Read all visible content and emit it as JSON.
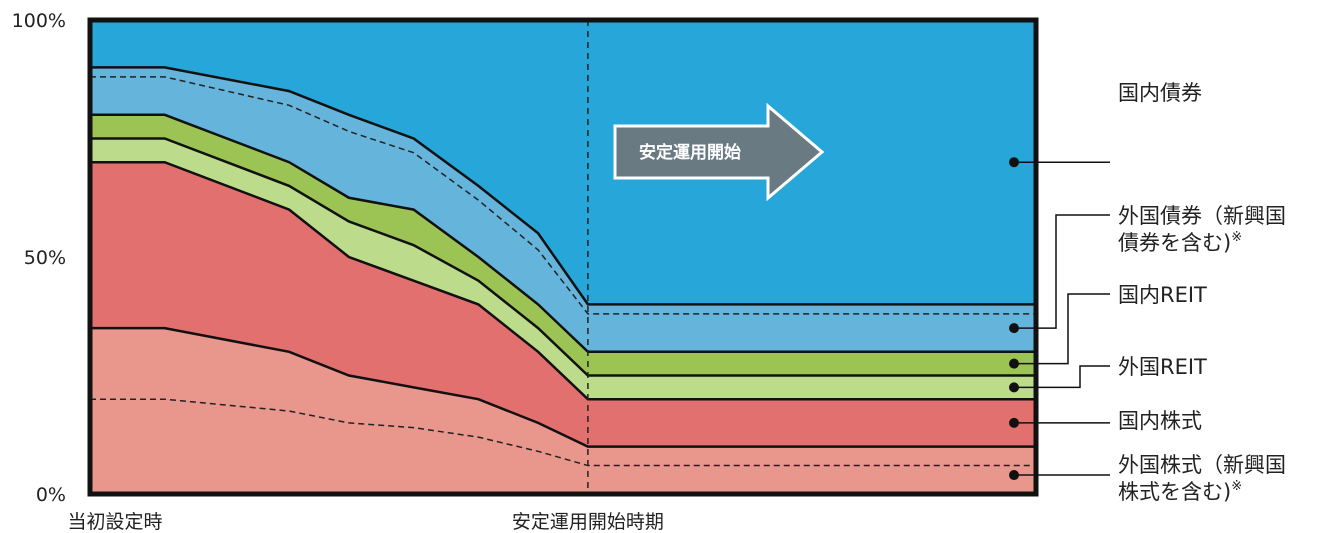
{
  "chart_data": {
    "type": "area",
    "stacked": true,
    "title": "",
    "xlabel": "",
    "ylabel": "",
    "ylim": [
      0,
      100
    ],
    "y_ticks": [
      "100%",
      "50%",
      "0%"
    ],
    "x_labels": [
      "当初設定時",
      "安定運用開始時期"
    ],
    "x": [
      0,
      15,
      40,
      52,
      65,
      78,
      90,
      100,
      190
    ],
    "x_marker_index": 7,
    "series": [
      {
        "name": "外国株式（新興国株式を含む)※",
        "color": "#E9968C",
        "values": [
          35,
          35,
          30,
          25,
          22.5,
          20,
          15,
          10,
          10
        ],
        "sub_line": [
          20,
          20,
          17.5,
          15,
          14,
          12,
          9,
          6,
          6
        ]
      },
      {
        "name": "国内株式",
        "color": "#E2706F",
        "values": [
          35,
          35,
          30,
          25,
          22.5,
          20,
          15,
          10,
          10
        ]
      },
      {
        "name": "外国REIT",
        "color": "#BCDC8C",
        "values": [
          5,
          5,
          5,
          7.5,
          7.5,
          5,
          5,
          5,
          5
        ]
      },
      {
        "name": "国内REIT",
        "color": "#9CC455",
        "values": [
          5,
          5,
          5,
          5,
          7.5,
          5,
          5,
          5,
          5
        ]
      },
      {
        "name": "外国債券（新興国債券を含む)※",
        "color": "#64B4DC",
        "values": [
          10,
          10,
          15,
          17.5,
          15,
          15,
          15,
          10,
          10
        ],
        "sub_line": [
          8,
          8,
          12,
          14,
          12,
          12,
          11.5,
          8,
          8
        ]
      },
      {
        "name": "国内債券",
        "color": "#27A6D9",
        "values": [
          10,
          10,
          15,
          20,
          25,
          35,
          45,
          60,
          60
        ]
      }
    ],
    "legend_placement": "right",
    "annotation": "安定運用開始"
  },
  "legend": [
    {
      "lines": [
        "国内債券"
      ],
      "sup": ""
    },
    {
      "lines": [
        "外国債券（新興国",
        "債券を含む)"
      ],
      "sup": "※"
    },
    {
      "lines": [
        "国内REIT"
      ],
      "sup": ""
    },
    {
      "lines": [
        "外国REIT"
      ],
      "sup": ""
    },
    {
      "lines": [
        "国内株式"
      ],
      "sup": ""
    },
    {
      "lines": [
        "外国株式（新興国",
        "株式を含む)"
      ],
      "sup": "※"
    }
  ],
  "colors": {
    "arrow": "#6A7A82",
    "border": "#111111"
  }
}
